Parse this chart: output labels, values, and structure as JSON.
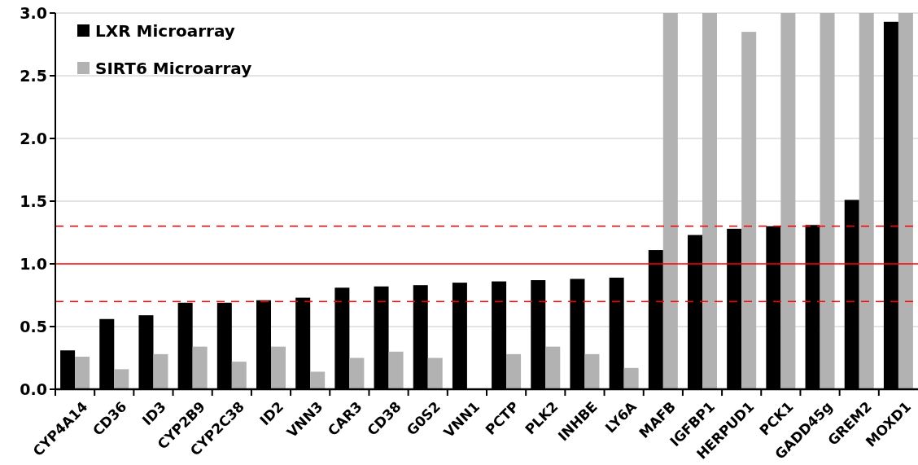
{
  "chart_data": {
    "type": "bar",
    "categories": [
      "CYP4A14",
      "CD36",
      "ID3",
      "CYP2B9",
      "CYP2C38",
      "ID2",
      "VNN3",
      "CAR3",
      "CD38",
      "G0S2",
      "VNN1",
      "PCTP",
      "PLK2",
      "INHBE",
      "LY6A",
      "MAFB",
      "IGFBP1",
      "HERPUD1",
      "PCK1",
      "GADD45g",
      "GREM2",
      "MOXD1"
    ],
    "series": [
      {
        "name": "LXR Microarray",
        "color": "#000000",
        "values": [
          0.31,
          0.56,
          0.59,
          0.69,
          0.69,
          0.71,
          0.73,
          0.81,
          0.82,
          0.83,
          0.85,
          0.86,
          0.87,
          0.88,
          0.89,
          1.11,
          1.23,
          1.28,
          1.3,
          1.31,
          1.51,
          2.93
        ]
      },
      {
        "name": "SIRT6 Microarray",
        "color": "#b2b2b2",
        "values": [
          0.26,
          0.16,
          0.28,
          0.34,
          0.22,
          0.34,
          0.14,
          0.25,
          0.3,
          0.25,
          null,
          0.28,
          0.34,
          0.28,
          0.17,
          3.0,
          3.0,
          2.85,
          3.0,
          3.0,
          3.0,
          3.0
        ]
      }
    ],
    "ylim": [
      0,
      3.0
    ],
    "yticks": [
      {
        "value": 0,
        "label": "0.0"
      },
      {
        "value": 0.5,
        "label": "0.5"
      },
      {
        "value": 1.0,
        "label": "1.0"
      },
      {
        "value": 1.5,
        "label": "1.5"
      },
      {
        "value": 2.0,
        "label": "2.0"
      },
      {
        "value": 2.5,
        "label": "2.5"
      },
      {
        "value": 3.0,
        "label": "3.0"
      }
    ],
    "grid": "y",
    "legend": "top left",
    "ref_lines": [
      {
        "axis": "y",
        "value": 0.7,
        "color": "#ff0000",
        "line_style": "dashed"
      },
      {
        "axis": "y",
        "value": 1.0,
        "color": "#ff0000",
        "line_style": "solid"
      },
      {
        "axis": "y",
        "value": 1.3,
        "color": "#ff0000",
        "line_style": "dashed"
      }
    ]
  }
}
